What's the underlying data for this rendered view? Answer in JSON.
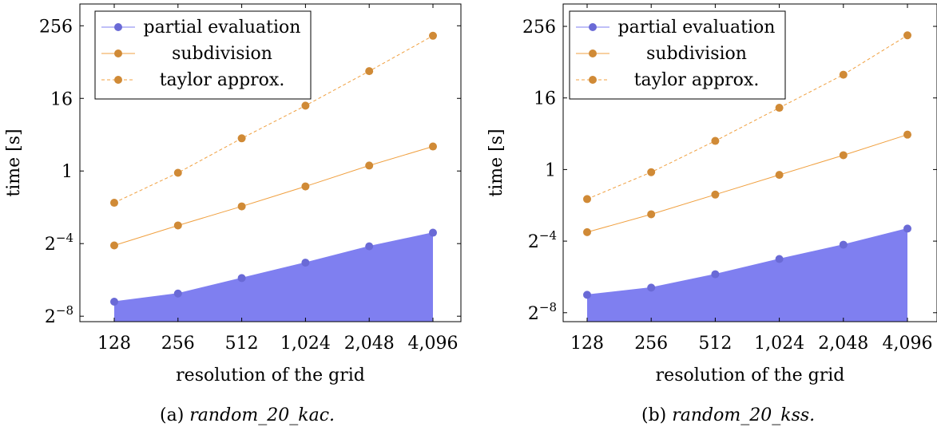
{
  "chart_data": [
    {
      "type": "line",
      "caption": {
        "label": "(a)",
        "name": "random_20_kac."
      },
      "xlabel": "resolution of the grid",
      "ylabel": "time [s]",
      "yscale": "log2",
      "ylim_log2": [
        -8.3,
        9.2
      ],
      "x": [
        128,
        256,
        512,
        1024,
        2048,
        4096
      ],
      "x_tick_labels": [
        "128",
        "256",
        "512",
        "1,024",
        "2,048",
        "4,096"
      ],
      "y_ticks": [
        {
          "exp": 8,
          "label": "256"
        },
        {
          "exp": 4,
          "label": "16"
        },
        {
          "exp": 0,
          "label": "1"
        },
        {
          "exp": -4,
          "label": "2",
          "sup": "−4"
        },
        {
          "exp": -8,
          "label": "2",
          "sup": "−8"
        }
      ],
      "legend": {
        "position": "top-left"
      },
      "series": [
        {
          "name": "partial evaluation",
          "style": "filled-area",
          "color": "#7f7ff0",
          "marker": "#6a6ad6",
          "log2_values": [
            -7.2,
            -6.75,
            -5.9,
            -5.05,
            -4.15,
            -3.4
          ]
        },
        {
          "name": "subdivision",
          "style": "solid",
          "color": "#f0a040",
          "marker": "#d08a36",
          "log2_values": [
            -4.1,
            -3.0,
            -1.95,
            -0.85,
            0.3,
            1.35
          ]
        },
        {
          "name": "taylor approx.",
          "style": "dashed",
          "color": "#f0a040",
          "marker": "#d08a36",
          "log2_values": [
            -1.75,
            -0.1,
            1.8,
            3.6,
            5.5,
            7.45
          ]
        }
      ]
    },
    {
      "type": "line",
      "caption": {
        "label": "(b)",
        "name": "random_20_kss."
      },
      "xlabel": "resolution of the grid",
      "ylabel": "time [s]",
      "yscale": "log2",
      "ylim_log2": [
        -8.5,
        9.25
      ],
      "x": [
        128,
        256,
        512,
        1024,
        2048,
        4096
      ],
      "x_tick_labels": [
        "128",
        "256",
        "512",
        "1,024",
        "2,048",
        "4,096"
      ],
      "y_ticks": [
        {
          "exp": 8,
          "label": "256"
        },
        {
          "exp": 4,
          "label": "16"
        },
        {
          "exp": 0,
          "label": "1"
        },
        {
          "exp": -4,
          "label": "2",
          "sup": "−4"
        },
        {
          "exp": -8,
          "label": "2",
          "sup": "−8"
        }
      ],
      "legend": {
        "position": "top-left"
      },
      "series": [
        {
          "name": "partial evaluation",
          "style": "filled-area",
          "color": "#7f7ff0",
          "marker": "#6a6ad6",
          "log2_values": [
            -7.0,
            -6.6,
            -5.85,
            -5.0,
            -4.2,
            -3.3
          ]
        },
        {
          "name": "subdivision",
          "style": "solid",
          "color": "#f0a040",
          "marker": "#d08a36",
          "log2_values": [
            -3.5,
            -2.5,
            -1.4,
            -0.3,
            0.8,
            1.95
          ]
        },
        {
          "name": "taylor approx.",
          "style": "dashed",
          "color": "#f0a040",
          "marker": "#d08a36",
          "log2_values": [
            -1.65,
            -0.15,
            1.6,
            3.45,
            5.3,
            7.5
          ]
        }
      ]
    }
  ]
}
